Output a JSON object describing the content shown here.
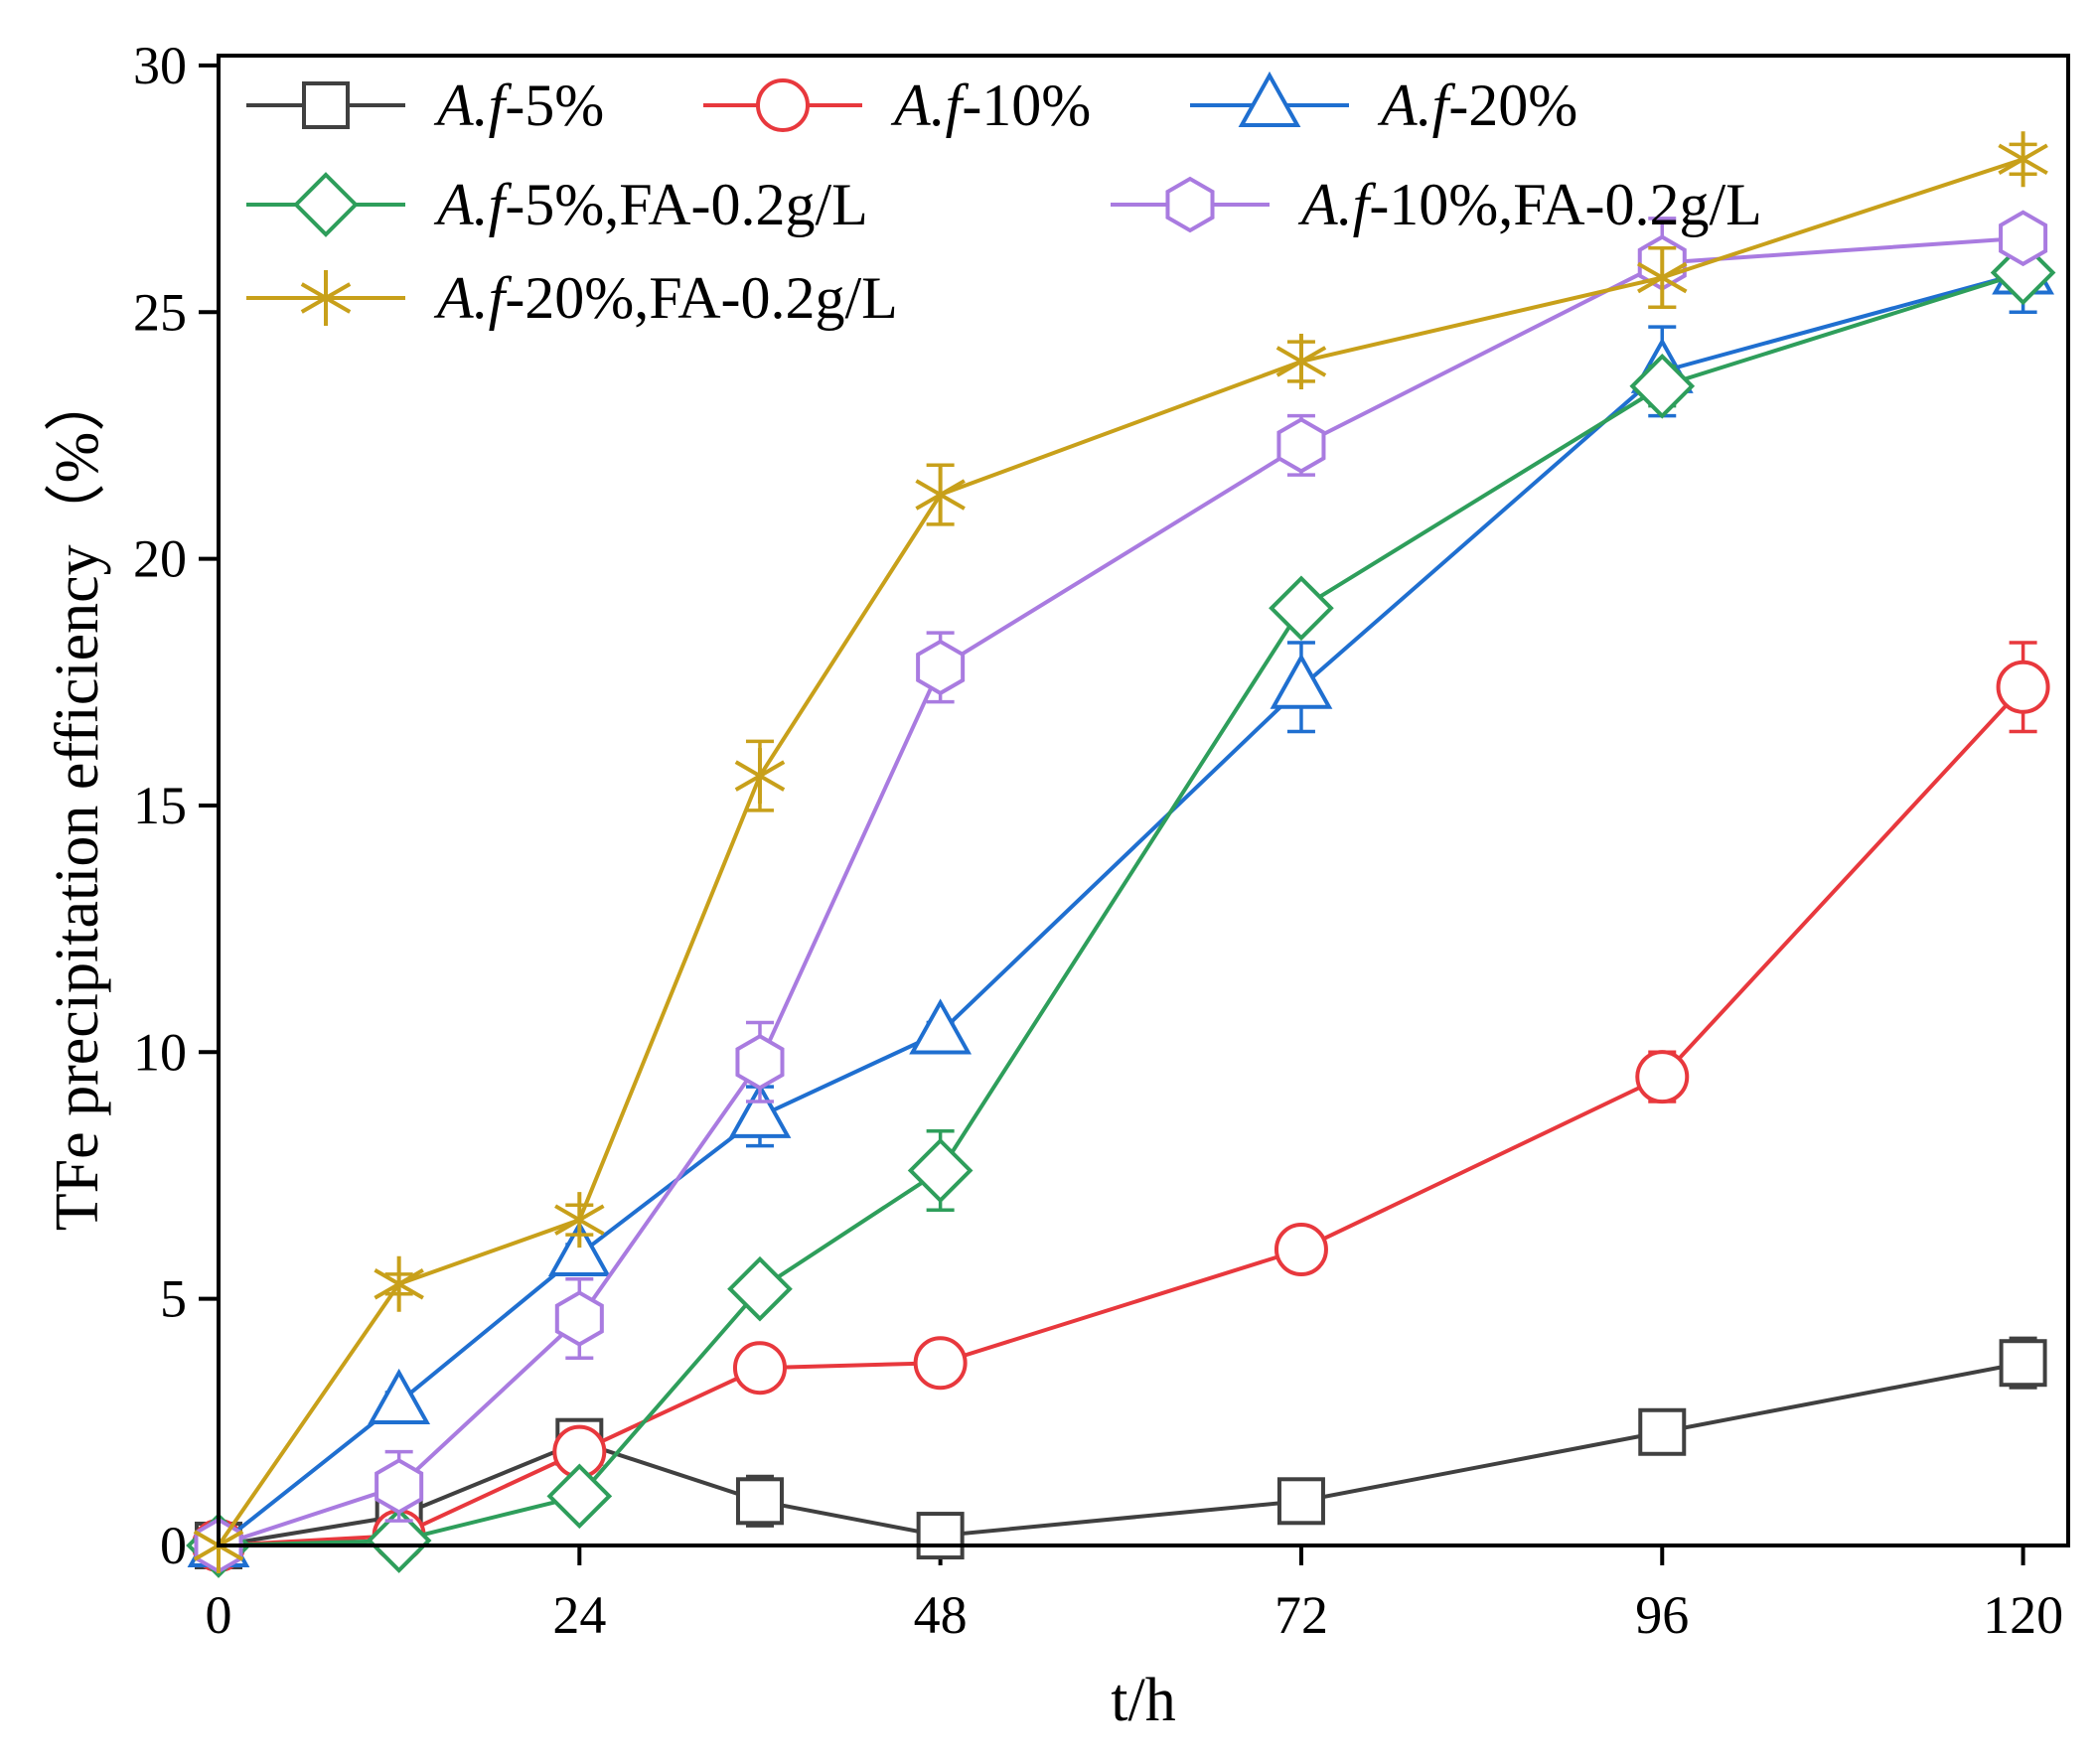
{
  "chart_data": {
    "type": "line",
    "title": "",
    "xlabel": "t/h",
    "ylabel": "TFe precipitation efficiency（%）",
    "xlim": [
      0,
      123
    ],
    "ylim": [
      0,
      30.2
    ],
    "xticks": [
      0,
      24,
      48,
      72,
      96,
      120
    ],
    "yticks": [
      0,
      5,
      10,
      15,
      20,
      25,
      30
    ],
    "xtick_labels": [
      "0",
      "24",
      "48",
      "72",
      "96",
      "120"
    ],
    "ytick_labels": [
      "0",
      "5",
      "10",
      "15",
      "20",
      "25",
      "30"
    ],
    "grid": false,
    "legend_position": "top-left",
    "series": [
      {
        "id": "af5",
        "name_italic": "A.f",
        "name_rest": "-5%",
        "color": "#404040",
        "marker": "square",
        "x": [
          0,
          12,
          24,
          36,
          48,
          72,
          96,
          120
        ],
        "y": [
          0,
          0.6,
          2.1,
          0.9,
          0.2,
          0.9,
          2.3,
          3.7
        ],
        "err": [
          0,
          0.4,
          0.2,
          0.5,
          0.1,
          0.3,
          0.3,
          0.5
        ]
      },
      {
        "id": "af10",
        "name_italic": "A.f",
        "name_rest": "-10%",
        "color": "#e8383d",
        "marker": "circle",
        "x": [
          0,
          12,
          24,
          36,
          48,
          72,
          96,
          120
        ],
        "y": [
          0,
          0.2,
          1.9,
          3.6,
          3.7,
          6.0,
          9.5,
          17.4
        ],
        "err": [
          0,
          0.1,
          0.2,
          0.2,
          0.2,
          0.2,
          0.5,
          0.9
        ]
      },
      {
        "id": "af20",
        "name_italic": "A.f",
        "name_rest": "-20%",
        "color": "#1f6fd0",
        "marker": "triangle",
        "x": [
          0,
          12,
          24,
          36,
          48,
          72,
          96,
          120
        ],
        "y": [
          0,
          2.9,
          5.9,
          8.7,
          10.4,
          17.4,
          23.8,
          25.8
        ],
        "err": [
          0,
          0.2,
          0.2,
          0.6,
          0.2,
          0.9,
          0.9,
          0.8
        ]
      },
      {
        "id": "af5fa",
        "name_italic": "A.f",
        "name_rest": "-5%,FA-0.2g/L",
        "color": "#2e9e5b",
        "marker": "diamond",
        "x": [
          0,
          12,
          24,
          36,
          48,
          72,
          96,
          120
        ],
        "y": [
          0,
          0.1,
          1.0,
          5.2,
          7.6,
          19.0,
          23.5,
          25.8
        ],
        "err": [
          0,
          0.2,
          0.3,
          0.3,
          0.8,
          0.3,
          0.4,
          0.3
        ]
      },
      {
        "id": "af10fa",
        "name_italic": "A.f",
        "name_rest": "-10%,FA-0.2g/L",
        "color": "#a97be0",
        "marker": "hexagon",
        "x": [
          0,
          12,
          24,
          36,
          48,
          72,
          96,
          120
        ],
        "y": [
          0,
          1.2,
          4.6,
          9.8,
          17.8,
          22.3,
          26.0,
          26.5
        ],
        "err": [
          0,
          0.7,
          0.8,
          0.8,
          0.7,
          0.6,
          0.9,
          0.3
        ]
      },
      {
        "id": "af20fa",
        "name_italic": "A.f",
        "name_rest": "-20%,FA-0.2g/L",
        "color": "#c8a01a",
        "marker": "star",
        "x": [
          0,
          12,
          24,
          36,
          48,
          72,
          96,
          120
        ],
        "y": [
          0,
          5.3,
          6.6,
          15.6,
          21.3,
          24.0,
          25.7,
          28.1
        ],
        "err": [
          0,
          0.2,
          0.3,
          0.7,
          0.6,
          0.4,
          0.6,
          0.3
        ]
      }
    ]
  }
}
